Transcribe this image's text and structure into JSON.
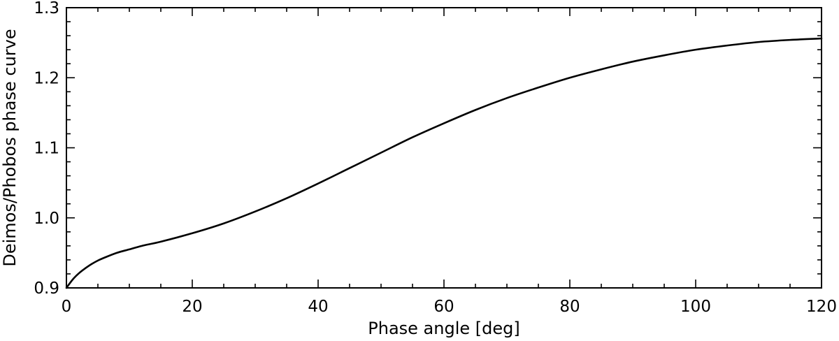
{
  "chart_data": {
    "type": "line",
    "xlabel": "Phase angle [deg]",
    "ylabel": "Deimos/Phobos phase curve",
    "xlim": [
      0,
      120
    ],
    "ylim": [
      0.9,
      1.3
    ],
    "x_major_ticks": [
      0,
      20,
      40,
      60,
      80,
      100,
      120
    ],
    "x_tick_labels": [
      "0",
      "20",
      "40",
      "60",
      "80",
      "100",
      "120"
    ],
    "x_minor_step": 5,
    "y_major_ticks": [
      0.9,
      1.0,
      1.1,
      1.2,
      1.3
    ],
    "y_tick_labels": [
      "0.9",
      "1.0",
      "1.1",
      "1.2",
      "1.3"
    ],
    "y_minor_step": 0.02,
    "grid": false,
    "line_color": "#000000",
    "series": [
      {
        "x": [
          0,
          1,
          2,
          3,
          4,
          5,
          6,
          8,
          10,
          12,
          15,
          20,
          25,
          30,
          35,
          40,
          45,
          50,
          55,
          60,
          65,
          70,
          75,
          80,
          85,
          90,
          95,
          100,
          105,
          110,
          115,
          120
        ],
        "values": [
          0.9,
          0.912,
          0.921,
          0.928,
          0.934,
          0.939,
          0.943,
          0.95,
          0.955,
          0.96,
          0.966,
          0.978,
          0.992,
          1.009,
          1.028,
          1.049,
          1.071,
          1.093,
          1.115,
          1.135,
          1.154,
          1.171,
          1.186,
          1.2,
          1.212,
          1.223,
          1.232,
          1.24,
          1.246,
          1.251,
          1.254,
          1.256
        ]
      }
    ]
  }
}
